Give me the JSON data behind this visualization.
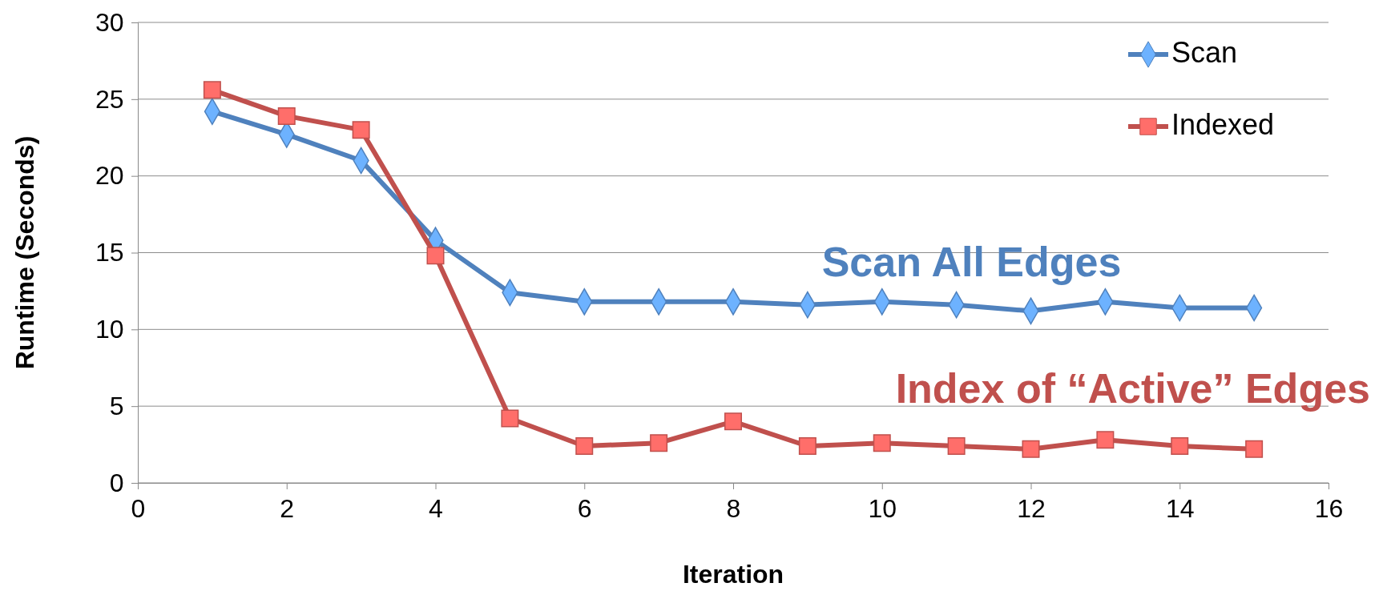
{
  "chart_data": {
    "type": "line",
    "xlabel": "Iteration",
    "ylabel": "Runtime (Seconds)",
    "xlim": [
      0,
      16
    ],
    "xticks": [
      0,
      2,
      4,
      6,
      8,
      10,
      12,
      14,
      16
    ],
    "ylim": [
      0,
      30
    ],
    "yticks": [
      0,
      5,
      10,
      15,
      20,
      25,
      30
    ],
    "grid": "y",
    "legend": "top right",
    "line_style": "solid",
    "x": [
      1,
      2,
      3,
      4,
      5,
      6,
      7,
      8,
      9,
      10,
      11,
      12,
      13,
      14,
      15
    ],
    "series": [
      {
        "name": "Scan",
        "color": "#4f81bd",
        "marker": "diamond",
        "values": [
          24.2,
          22.7,
          21.0,
          15.8,
          12.4,
          11.8,
          11.8,
          11.8,
          11.6,
          11.8,
          11.6,
          11.2,
          11.8,
          11.4,
          11.4
        ]
      },
      {
        "name": "Indexed",
        "color": "#c0504d",
        "marker": "square",
        "values": [
          25.6,
          23.9,
          23.0,
          14.8,
          4.2,
          2.4,
          2.6,
          4.0,
          2.4,
          2.6,
          2.4,
          2.2,
          2.8,
          2.4,
          2.2
        ]
      }
    ],
    "annotations": [
      "Scan All Edges",
      "Index of “Active” Edges"
    ]
  }
}
